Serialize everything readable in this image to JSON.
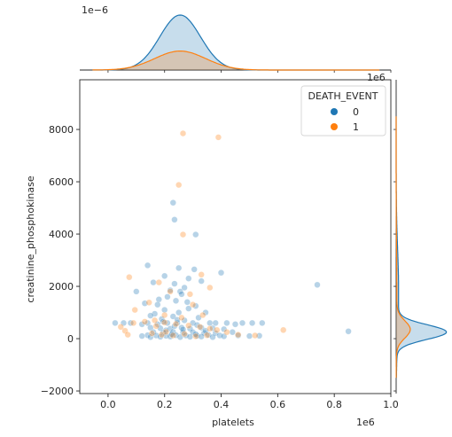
{
  "chart_data": {
    "type": "scatter",
    "xlabel": "platelets",
    "ylabel": "creatinine_phosphokinase",
    "x_multiplier_label": "1e6",
    "top_marginal_multiplier_label": "1e−6",
    "right_marginal_multiplier_label": "1e6",
    "xlim": [
      -100000,
      1000000
    ],
    "ylim": [
      -2100,
      9900
    ],
    "x_ticks": [
      0.0,
      200000,
      400000,
      600000,
      800000,
      1000000
    ],
    "x_tick_labels": [
      "0.0",
      "0.2",
      "0.4",
      "0.6",
      "0.8",
      "1.0"
    ],
    "y_ticks": [
      -2000,
      0,
      2000,
      4000,
      6000,
      8000
    ],
    "y_tick_labels": [
      "−2000",
      "0",
      "2000",
      "4000",
      "6000",
      "8000"
    ],
    "grid": false,
    "legend": {
      "title": "DEATH_EVENT",
      "placement": "top-right",
      "entries": [
        {
          "label": "0",
          "color": "#1f77b4"
        },
        {
          "label": "1",
          "color": "#ff7f0e"
        }
      ]
    },
    "series": [
      {
        "name": "0",
        "color": "#1f77b4",
        "points": [
          [
            740000,
            2060
          ],
          [
            850000,
            280
          ],
          [
            230000,
            5200
          ],
          [
            235000,
            4550
          ],
          [
            310000,
            3980
          ],
          [
            140000,
            2800
          ],
          [
            250000,
            2700
          ],
          [
            305000,
            2650
          ],
          [
            400000,
            2520
          ],
          [
            200000,
            2400
          ],
          [
            285000,
            2300
          ],
          [
            330000,
            2200
          ],
          [
            160000,
            2150
          ],
          [
            235000,
            2100
          ],
          [
            270000,
            1950
          ],
          [
            100000,
            1800
          ],
          [
            220000,
            1850
          ],
          [
            255000,
            1800
          ],
          [
            210000,
            1600
          ],
          [
            260000,
            1700
          ],
          [
            180000,
            1500
          ],
          [
            240000,
            1450
          ],
          [
            280000,
            1400
          ],
          [
            130000,
            1350
          ],
          [
            310000,
            1250
          ],
          [
            200000,
            1100
          ],
          [
            250000,
            1000
          ],
          [
            165000,
            950
          ],
          [
            345000,
            1000
          ],
          [
            230000,
            850
          ],
          [
            190000,
            750
          ],
          [
            270000,
            700
          ],
          [
            320000,
            800
          ],
          [
            140000,
            600
          ],
          [
            175000,
            550
          ],
          [
            210000,
            600
          ],
          [
            245000,
            600
          ],
          [
            300000,
            600
          ],
          [
            360000,
            600
          ],
          [
            380000,
            600
          ],
          [
            420000,
            600
          ],
          [
            450000,
            550
          ],
          [
            475000,
            600
          ],
          [
            510000,
            600
          ],
          [
            545000,
            600
          ],
          [
            25000,
            600
          ],
          [
            55000,
            600
          ],
          [
            80000,
            600
          ],
          [
            120000,
            550
          ],
          [
            150000,
            420
          ],
          [
            185000,
            400
          ],
          [
            220000,
            380
          ],
          [
            260000,
            420
          ],
          [
            290000,
            380
          ],
          [
            330000,
            420
          ],
          [
            370000,
            400
          ],
          [
            410000,
            360
          ],
          [
            160000,
            250
          ],
          [
            195000,
            230
          ],
          [
            230000,
            260
          ],
          [
            265000,
            240
          ],
          [
            300000,
            250
          ],
          [
            340000,
            220
          ],
          [
            380000,
            210
          ],
          [
            440000,
            250
          ],
          [
            140000,
            130
          ],
          [
            170000,
            120
          ],
          [
            205000,
            110
          ],
          [
            240000,
            130
          ],
          [
            275000,
            120
          ],
          [
            315000,
            110
          ],
          [
            355000,
            140
          ],
          [
            395000,
            120
          ],
          [
            150000,
            60
          ],
          [
            185000,
            70
          ],
          [
            220000,
            80
          ],
          [
            255000,
            60
          ],
          [
            290000,
            70
          ],
          [
            330000,
            80
          ],
          [
            370000,
            60
          ],
          [
            410000,
            90
          ],
          [
            460000,
            120
          ],
          [
            500000,
            100
          ],
          [
            535000,
            110
          ],
          [
            120000,
            100
          ],
          [
            265000,
            350
          ],
          [
            205000,
            320
          ],
          [
            245000,
            720
          ],
          [
            315000,
            520
          ],
          [
            150000,
            880
          ],
          [
            285000,
            1150
          ],
          [
            175000,
            1300
          ],
          [
            225000,
            170
          ],
          [
            310000,
            170
          ],
          [
            345000,
            300
          ],
          [
            195000,
            650
          ],
          [
            235000,
            480
          ]
        ]
      },
      {
        "name": "1",
        "color": "#ff7f0e",
        "points": [
          [
            265000,
            7850
          ],
          [
            390000,
            7700
          ],
          [
            250000,
            5880
          ],
          [
            265000,
            3980
          ],
          [
            330000,
            2450
          ],
          [
            75000,
            2350
          ],
          [
            360000,
            1950
          ],
          [
            180000,
            2150
          ],
          [
            220000,
            1800
          ],
          [
            290000,
            1700
          ],
          [
            145000,
            1380
          ],
          [
            300000,
            1300
          ],
          [
            95000,
            1100
          ],
          [
            335000,
            900
          ],
          [
            200000,
            900
          ],
          [
            260000,
            800
          ],
          [
            45000,
            450
          ],
          [
            60000,
            300
          ],
          [
            70000,
            150
          ],
          [
            90000,
            600
          ],
          [
            130000,
            650
          ],
          [
            165000,
            700
          ],
          [
            200000,
            620
          ],
          [
            240000,
            560
          ],
          [
            285000,
            500
          ],
          [
            325000,
            450
          ],
          [
            360000,
            380
          ],
          [
            385000,
            330
          ],
          [
            420000,
            250
          ],
          [
            460000,
            150
          ],
          [
            520000,
            120
          ],
          [
            620000,
            330
          ],
          [
            155000,
            200
          ],
          [
            190000,
            150
          ],
          [
            230000,
            120
          ],
          [
            270000,
            180
          ],
          [
            310000,
            90
          ],
          [
            350000,
            130
          ],
          [
            205000,
            260
          ],
          [
            170000,
            480
          ]
        ]
      }
    ],
    "marginal_x_kde": {
      "series": [
        {
          "name": "0",
          "color": "#1f77b4",
          "peak_x": 255000,
          "bandwidth": 72000,
          "weight": 2.55
        },
        {
          "name": "1",
          "color": "#ff7f0e",
          "peak_x": 255000,
          "bandwidth": 90000,
          "weight": 1.1
        }
      ]
    },
    "marginal_y_kde": {
      "series": [
        {
          "name": "0",
          "color": "#1f77b4",
          "peak_y": 250,
          "bandwidth": 280,
          "weight": 1.0
        },
        {
          "name": "1",
          "color": "#ff7f0e",
          "peak_y": 350,
          "bandwidth": 330,
          "weight": 0.33
        }
      ]
    }
  }
}
